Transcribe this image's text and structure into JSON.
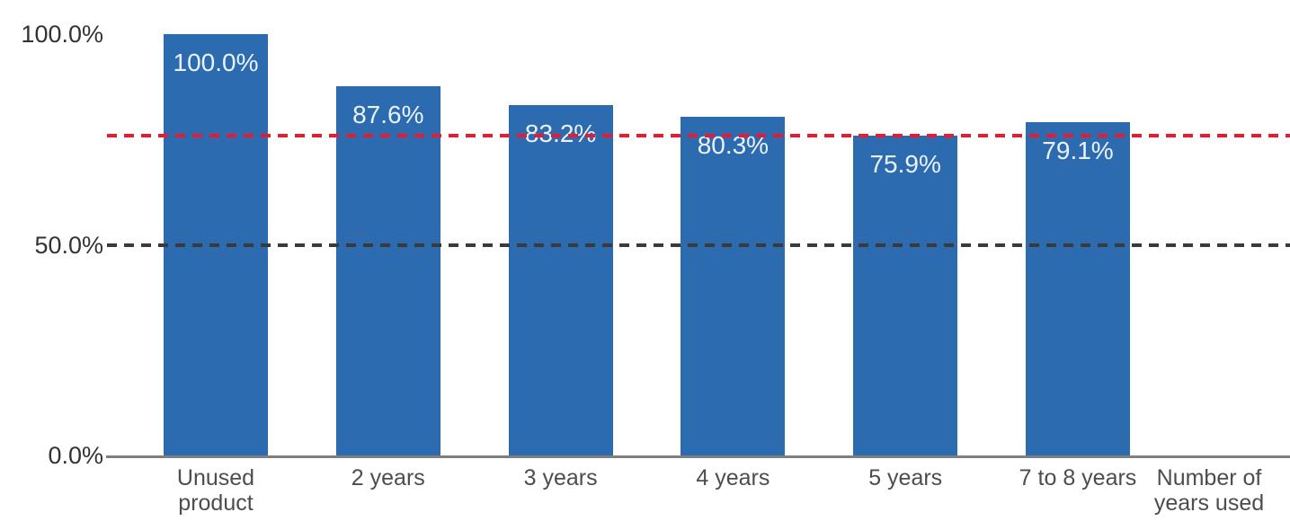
{
  "chart_data": {
    "type": "bar",
    "title": "",
    "categories": [
      "Unused\nproduct",
      "2 years",
      "3 years",
      "4 years",
      "5 years",
      "7 to 8 years"
    ],
    "values": [
      100.0,
      87.6,
      83.2,
      80.3,
      75.9,
      79.1
    ],
    "bar_labels": [
      "100.0%",
      "87.6%",
      "83.2%",
      "80.3%",
      "75.9%",
      "79.1%"
    ],
    "xlabel": "Number of\nyears used",
    "ylabel": "",
    "ylim": [
      0,
      100
    ],
    "grid": "off",
    "legend": "none",
    "y_ticks": [
      {
        "label": "0.0%",
        "value": 0
      },
      {
        "label": "50.0%",
        "value": 50
      },
      {
        "label": "100.0%",
        "value": 100
      }
    ],
    "reference_lines": [
      {
        "name": "fifty-percent-dashed-line",
        "value": 50,
        "color": "#3a3a3a",
        "style": "dashed"
      },
      {
        "name": "min-value-dashed-line",
        "value": 75.9,
        "color": "#e91930",
        "style": "dashed"
      }
    ],
    "colors": {
      "bar": "#2d6bb1",
      "bar_label": "#eaf2fb",
      "axis_line": "#7f7f7f",
      "tick_text": "#333333",
      "category_text": "#4d4d4d"
    }
  }
}
